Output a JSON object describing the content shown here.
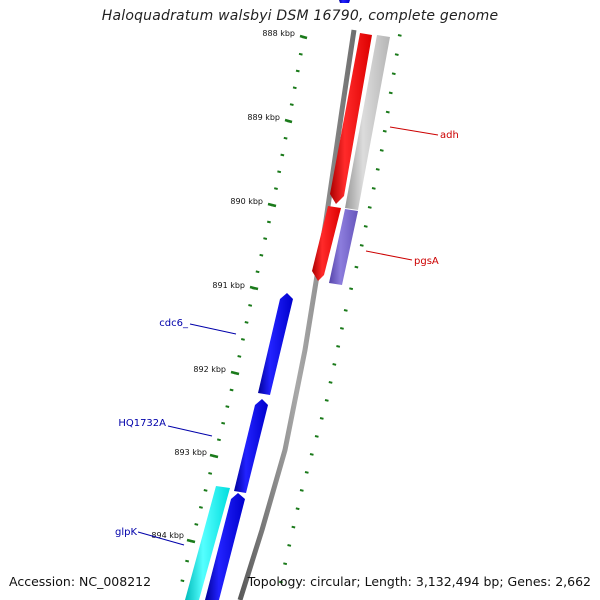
{
  "title": "Haloquadratum walsbyi DSM 16790, complete genome",
  "footer": {
    "accession": "Accession: NC_008212",
    "summary": "Topology: circular; Length: 3,132,494 bp; Genes: 2,662"
  },
  "colors": {
    "backbone": "#808080",
    "tick": "#1a7a1a",
    "forward_gene": "#0000ee",
    "reverse_gene": "#ff0000",
    "grey_gene": "#c0c0c0",
    "purple_gene": "#7766cc",
    "cyan_gene": "#00e5e5",
    "label_red": "#cc0000",
    "label_blue": "#0000aa"
  },
  "diagram": {
    "ticks": [
      "888 kbp",
      "889 kbp",
      "890 kbp",
      "891 kbp",
      "892 kbp",
      "893 kbp",
      "894 kbp"
    ],
    "genes": [
      {
        "label": "adh",
        "strand": "reverse",
        "color": "red"
      },
      {
        "label": "pgsA",
        "strand": "reverse",
        "color": "purple"
      },
      {
        "label": "cdc6_",
        "strand": "forward",
        "color": "blue"
      },
      {
        "label": "HQ1732A",
        "strand": "forward",
        "color": "blue"
      },
      {
        "label": "glpK",
        "strand": "forward",
        "color": "cyan"
      }
    ]
  }
}
